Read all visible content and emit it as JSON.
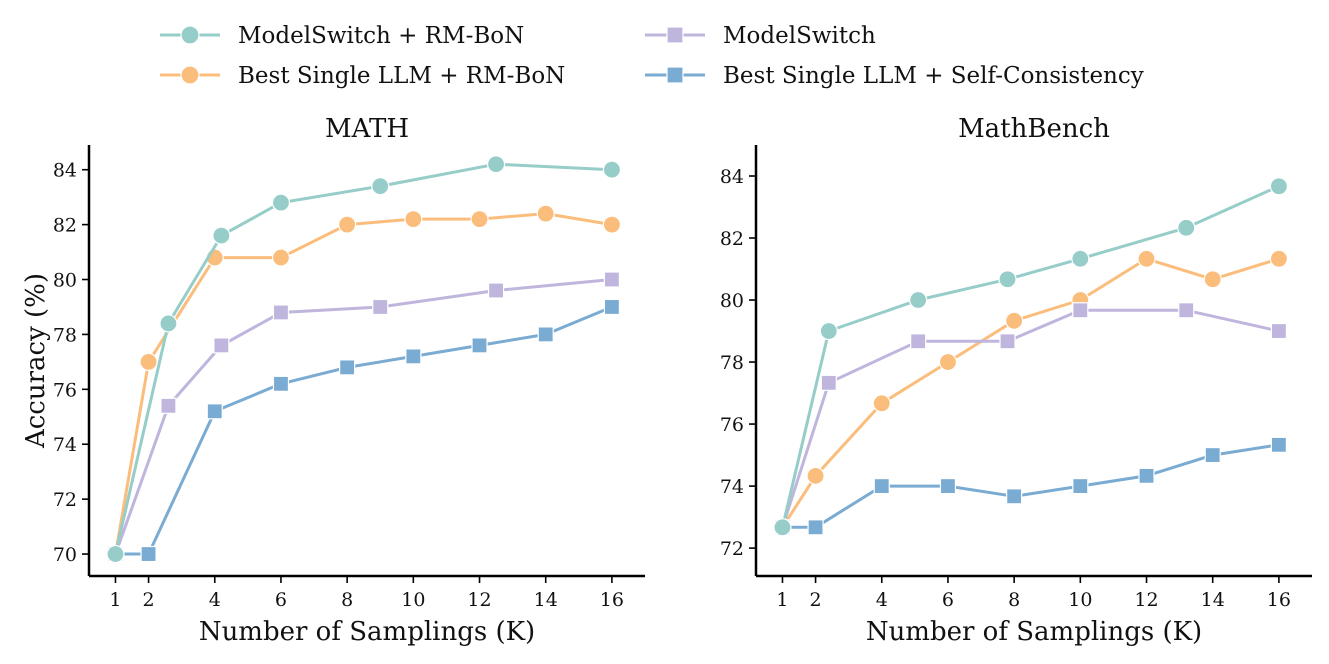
{
  "legend": [
    {
      "label": "ModelSwitch + RM-BoN",
      "color": "#96cdc8",
      "marker": "circle"
    },
    {
      "label": "ModelSwitch",
      "color": "#bfb5dd",
      "marker": "square"
    },
    {
      "label": "Best Single LLM + RM-BoN",
      "color": "#fbbd7b",
      "marker": "circle"
    },
    {
      "label": "Best Single LLM + Self-Consistency",
      "color": "#7aabd2",
      "marker": "square"
    }
  ],
  "chart_data": [
    {
      "type": "line",
      "title": "MATH",
      "xlabel": "Number of Samplings (K)",
      "ylabel": "Accuracy (%)",
      "xlim": [
        0.2,
        17
      ],
      "ylim": [
        69.2,
        84.9
      ],
      "xticks": [
        1,
        2,
        4,
        6,
        8,
        10,
        12,
        14,
        16
      ],
      "yticks": [
        70,
        72,
        74,
        76,
        78,
        80,
        82,
        84
      ],
      "series": [
        {
          "name": "ModelSwitch + RM-BoN",
          "x": [
            1,
            2.6,
            4.2,
            6,
            9,
            12.5,
            16
          ],
          "y": [
            70.0,
            78.4,
            81.6,
            82.8,
            83.4,
            84.2,
            84.0
          ]
        },
        {
          "name": "ModelSwitch",
          "x": [
            1,
            2.6,
            4.2,
            6,
            9,
            12.5,
            16
          ],
          "y": [
            70.0,
            75.4,
            77.6,
            78.8,
            79.0,
            79.6,
            80.0
          ]
        },
        {
          "name": "Best Single LLM + RM-BoN",
          "x": [
            1,
            2,
            4,
            6,
            8,
            10,
            12,
            14,
            16
          ],
          "y": [
            70.0,
            77.0,
            80.8,
            80.8,
            82.0,
            82.2,
            82.2,
            82.4,
            82.0
          ]
        },
        {
          "name": "Best Single LLM + Self-Consistency",
          "x": [
            1,
            2,
            4,
            6,
            8,
            10,
            12,
            14,
            16
          ],
          "y": [
            70.0,
            70.0,
            75.2,
            76.2,
            76.8,
            77.2,
            77.6,
            78.0,
            79.0
          ]
        }
      ]
    },
    {
      "type": "line",
      "title": "MathBench",
      "xlabel": "Number of Samplings (K)",
      "ylabel": "",
      "xlim": [
        0.2,
        17
      ],
      "ylim": [
        71.1,
        85.0
      ],
      "xticks": [
        1,
        2,
        4,
        6,
        8,
        10,
        12,
        14,
        16
      ],
      "yticks": [
        72,
        74,
        76,
        78,
        80,
        82,
        84
      ],
      "series": [
        {
          "name": "ModelSwitch + RM-BoN",
          "x": [
            1,
            2.4,
            5.1,
            7.8,
            10,
            13.2,
            16
          ],
          "y": [
            72.67,
            79.0,
            80.0,
            80.67,
            81.33,
            82.33,
            83.67
          ]
        },
        {
          "name": "ModelSwitch",
          "x": [
            1,
            2.4,
            5.1,
            7.8,
            10,
            13.2,
            16
          ],
          "y": [
            72.67,
            77.33,
            78.67,
            78.67,
            79.67,
            79.67,
            79.0
          ]
        },
        {
          "name": "Best Single LLM + RM-BoN",
          "x": [
            1,
            2,
            4,
            6,
            8,
            10,
            12,
            14,
            16
          ],
          "y": [
            72.67,
            74.33,
            76.67,
            78.0,
            79.33,
            80.0,
            81.33,
            80.67,
            81.33
          ]
        },
        {
          "name": "Best Single LLM + Self-Consistency",
          "x": [
            1,
            2,
            4,
            6,
            8,
            10,
            12,
            14,
            16
          ],
          "y": [
            72.67,
            72.67,
            74.0,
            74.0,
            73.67,
            74.0,
            74.33,
            75.0,
            75.33
          ]
        }
      ]
    }
  ]
}
